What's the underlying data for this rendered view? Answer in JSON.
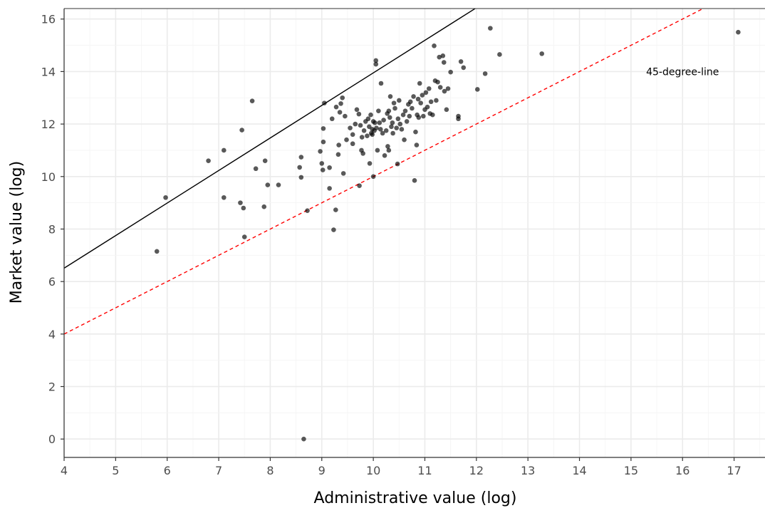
{
  "chart_data": {
    "type": "scatter",
    "xlabel": "Administrative value (log)",
    "ylabel": "Market value (log)",
    "xlim": [
      4,
      17.6
    ],
    "ylim": [
      -0.7,
      16.4
    ],
    "x_ticks": [
      4,
      5,
      6,
      7,
      8,
      9,
      10,
      11,
      12,
      13,
      14,
      15,
      16,
      17
    ],
    "y_ticks": [
      0,
      2,
      4,
      6,
      8,
      10,
      12,
      14,
      16
    ],
    "grid": true,
    "colors": {
      "points": "#000000",
      "fit_line": "#000000",
      "reference_line": "#ff0000",
      "grid": "#ebebeb"
    },
    "fit_line": {
      "intercept": 1.55,
      "slope": 1.24
    },
    "reference_line": {
      "intercept": 0,
      "slope": 1,
      "style": "dashed"
    },
    "annotations": [
      {
        "text": "45-degree-line",
        "x": 16.0,
        "y": 14.0
      }
    ],
    "points": [
      [
        5.8,
        7.15
      ],
      [
        5.97,
        9.2
      ],
      [
        6.8,
        10.6
      ],
      [
        7.1,
        11.0
      ],
      [
        7.1,
        9.2
      ],
      [
        7.45,
        11.77
      ],
      [
        7.42,
        9.0
      ],
      [
        7.48,
        8.8
      ],
      [
        7.5,
        7.7
      ],
      [
        7.65,
        12.88
      ],
      [
        7.72,
        10.3
      ],
      [
        7.88,
        8.85
      ],
      [
        7.9,
        10.6
      ],
      [
        7.95,
        9.68
      ],
      [
        8.16,
        9.68
      ],
      [
        8.6,
        10.74
      ],
      [
        8.57,
        10.35
      ],
      [
        8.6,
        9.97
      ],
      [
        8.65,
        0.0
      ],
      [
        8.72,
        8.7
      ],
      [
        8.97,
        10.96
      ],
      [
        9.0,
        10.5
      ],
      [
        9.02,
        10.25
      ],
      [
        9.03,
        11.32
      ],
      [
        9.03,
        11.83
      ],
      [
        9.05,
        12.8
      ],
      [
        9.15,
        10.34
      ],
      [
        9.15,
        9.55
      ],
      [
        9.2,
        12.2
      ],
      [
        9.23,
        7.97
      ],
      [
        9.27,
        8.73
      ],
      [
        9.28,
        12.65
      ],
      [
        9.32,
        10.84
      ],
      [
        9.35,
        12.45
      ],
      [
        9.33,
        11.2
      ],
      [
        9.37,
        12.78
      ],
      [
        9.42,
        10.12
      ],
      [
        9.4,
        13.0
      ],
      [
        9.45,
        12.3
      ],
      [
        9.48,
        11.4
      ],
      [
        9.55,
        11.85
      ],
      [
        9.6,
        11.25
      ],
      [
        9.6,
        11.6
      ],
      [
        9.65,
        12.0
      ],
      [
        9.68,
        12.55
      ],
      [
        9.72,
        12.38
      ],
      [
        9.75,
        11.95
      ],
      [
        9.73,
        9.65
      ],
      [
        9.77,
        11.0
      ],
      [
        9.78,
        11.5
      ],
      [
        9.8,
        10.88
      ],
      [
        9.82,
        11.75
      ],
      [
        9.85,
        12.1
      ],
      [
        9.88,
        11.55
      ],
      [
        9.9,
        12.2
      ],
      [
        9.92,
        11.9
      ],
      [
        9.93,
        10.5
      ],
      [
        9.95,
        12.35
      ],
      [
        9.96,
        11.65
      ],
      [
        9.98,
        11.8
      ],
      [
        9.98,
        11.6
      ],
      [
        10.0,
        12.1
      ],
      [
        10.0,
        10.0
      ],
      [
        10.02,
        11.75
      ],
      [
        10.03,
        12.05
      ],
      [
        10.05,
        14.42
      ],
      [
        10.05,
        14.28
      ],
      [
        10.06,
        11.85
      ],
      [
        10.08,
        11.0
      ],
      [
        10.1,
        12.5
      ],
      [
        10.12,
        12.05
      ],
      [
        10.14,
        11.8
      ],
      [
        10.15,
        13.55
      ],
      [
        10.18,
        11.65
      ],
      [
        10.2,
        12.15
      ],
      [
        10.22,
        10.8
      ],
      [
        10.25,
        11.75
      ],
      [
        10.27,
        12.4
      ],
      [
        10.28,
        11.15
      ],
      [
        10.3,
        11.0
      ],
      [
        10.3,
        12.5
      ],
      [
        10.32,
        12.25
      ],
      [
        10.33,
        13.05
      ],
      [
        10.35,
        11.9
      ],
      [
        10.37,
        12.05
      ],
      [
        10.38,
        11.65
      ],
      [
        10.4,
        12.8
      ],
      [
        10.42,
        12.6
      ],
      [
        10.45,
        11.85
      ],
      [
        10.47,
        10.48
      ],
      [
        10.48,
        12.2
      ],
      [
        10.5,
        12.9
      ],
      [
        10.52,
        12.0
      ],
      [
        10.55,
        11.8
      ],
      [
        10.58,
        12.35
      ],
      [
        10.6,
        11.4
      ],
      [
        10.62,
        12.5
      ],
      [
        10.65,
        12.1
      ],
      [
        10.68,
        12.75
      ],
      [
        10.7,
        12.3
      ],
      [
        10.72,
        12.85
      ],
      [
        10.75,
        12.6
      ],
      [
        10.78,
        13.05
      ],
      [
        10.8,
        9.85
      ],
      [
        10.82,
        11.7
      ],
      [
        10.84,
        11.2
      ],
      [
        10.85,
        12.35
      ],
      [
        10.87,
        12.95
      ],
      [
        10.88,
        12.25
      ],
      [
        10.9,
        13.55
      ],
      [
        10.92,
        12.8
      ],
      [
        10.95,
        13.1
      ],
      [
        10.97,
        12.3
      ],
      [
        11.0,
        12.55
      ],
      [
        11.02,
        13.2
      ],
      [
        11.05,
        12.65
      ],
      [
        11.08,
        13.35
      ],
      [
        11.1,
        12.4
      ],
      [
        11.12,
        12.85
      ],
      [
        11.15,
        12.35
      ],
      [
        11.18,
        14.98
      ],
      [
        11.2,
        13.65
      ],
      [
        11.22,
        12.9
      ],
      [
        11.25,
        13.6
      ],
      [
        11.28,
        14.55
      ],
      [
        11.3,
        13.4
      ],
      [
        11.35,
        14.6
      ],
      [
        11.37,
        14.35
      ],
      [
        11.38,
        13.25
      ],
      [
        11.42,
        12.55
      ],
      [
        11.45,
        13.35
      ],
      [
        11.5,
        13.98
      ],
      [
        11.65,
        12.3
      ],
      [
        11.65,
        12.2
      ],
      [
        11.7,
        14.38
      ],
      [
        11.75,
        14.15
      ],
      [
        12.02,
        13.32
      ],
      [
        12.17,
        13.92
      ],
      [
        12.27,
        15.65
      ],
      [
        12.45,
        14.65
      ],
      [
        13.27,
        14.68
      ],
      [
        17.08,
        15.5
      ]
    ]
  }
}
